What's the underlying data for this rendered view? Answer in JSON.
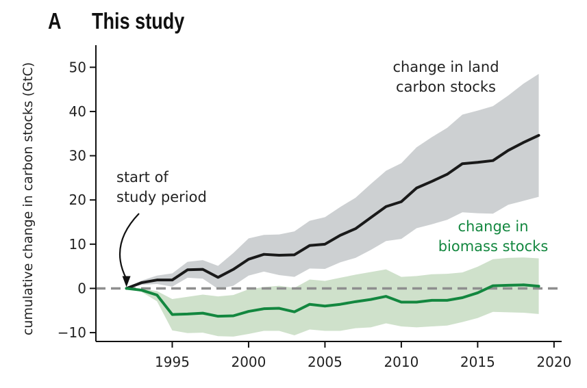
{
  "header": {
    "panel_letter": "A",
    "title": "This study"
  },
  "chart_data": {
    "type": "line",
    "title": "This study",
    "xlabel": "",
    "ylabel": "cumulative change in carbon stocks (GtC)",
    "xlim": [
      1990,
      2020.5
    ],
    "ylim": [
      -12,
      55
    ],
    "xticks": [
      1995,
      2000,
      2005,
      2010,
      2015,
      2020
    ],
    "yticks": [
      -10,
      0,
      10,
      20,
      30,
      40,
      50
    ],
    "grid": false,
    "reference_line": {
      "y": 0,
      "style": "dashed",
      "color": "#8e8e8e"
    },
    "x": [
      1992,
      1993,
      1994,
      1995,
      1996,
      1997,
      1998,
      1999,
      2000,
      2001,
      2002,
      2003,
      2004,
      2005,
      2006,
      2007,
      2008,
      2009,
      2010,
      2011,
      2012,
      2013,
      2014,
      2015,
      2016,
      2017,
      2018,
      2019
    ],
    "series": [
      {
        "label": "change in land carbon stocks",
        "color": "#1a1a1a",
        "band_color": "#cdd0d2",
        "values": [
          0,
          1.3,
          1.9,
          1.9,
          4.2,
          4.3,
          2.5,
          4.3,
          6.6,
          7.7,
          7.5,
          7.6,
          9.7,
          10.0,
          12.0,
          13.5,
          16.0,
          18.5,
          19.6,
          22.7,
          24.2,
          25.8,
          28.2,
          28.5,
          28.9,
          31.2,
          33.0,
          34.6
        ],
        "upper": [
          0,
          1.8,
          2.9,
          3.4,
          6.0,
          6.4,
          5.1,
          8.0,
          11.3,
          12.1,
          12.2,
          12.9,
          15.3,
          16.1,
          18.4,
          20.5,
          23.6,
          26.6,
          28.3,
          31.9,
          34.2,
          36.3,
          39.3,
          40.2,
          41.2,
          43.6,
          46.3,
          48.5
        ],
        "lower": [
          0,
          0.8,
          1.0,
          0.4,
          2.4,
          2.2,
          -0.1,
          0.6,
          2.9,
          3.8,
          3.0,
          2.6,
          4.5,
          4.4,
          5.9,
          6.9,
          8.7,
          10.7,
          11.2,
          13.6,
          14.5,
          15.5,
          17.2,
          17.0,
          16.9,
          18.9,
          19.8,
          20.7
        ]
      },
      {
        "label": "change in biomass stocks",
        "color": "#13873f",
        "band_color": "#cfe1cb",
        "values": [
          0,
          -0.4,
          -1.5,
          -5.9,
          -5.8,
          -5.6,
          -6.3,
          -6.2,
          -5.2,
          -4.6,
          -4.5,
          -5.3,
          -3.6,
          -4.0,
          -3.6,
          -3.0,
          -2.5,
          -1.8,
          -3.1,
          -3.1,
          -2.7,
          -2.7,
          -2.1,
          -1.0,
          0.6,
          0.7,
          0.8,
          0.5
        ],
        "upper": [
          0,
          -0.1,
          -0.6,
          -2.4,
          -1.9,
          -1.4,
          -1.8,
          -1.5,
          -0.2,
          0.3,
          0.6,
          0.1,
          2.0,
          1.7,
          2.4,
          3.1,
          3.7,
          4.3,
          2.6,
          2.8,
          3.2,
          3.3,
          3.6,
          4.9,
          6.6,
          6.9,
          7.0,
          6.8
        ],
        "lower": [
          0,
          -0.8,
          -2.9,
          -9.5,
          -10.1,
          -10.0,
          -10.8,
          -10.9,
          -10.3,
          -9.6,
          -9.6,
          -10.6,
          -9.3,
          -9.6,
          -9.6,
          -9.0,
          -8.8,
          -7.9,
          -8.6,
          -8.8,
          -8.6,
          -8.4,
          -7.6,
          -6.7,
          -5.3,
          -5.4,
          -5.5,
          -5.8
        ]
      }
    ],
    "annotations": {
      "land_label": [
        "change in land",
        "carbon stocks"
      ],
      "biomass_label": [
        "change in",
        "biomass stocks"
      ],
      "start_label": [
        "start of",
        "study period"
      ],
      "start_year": 1992
    }
  }
}
